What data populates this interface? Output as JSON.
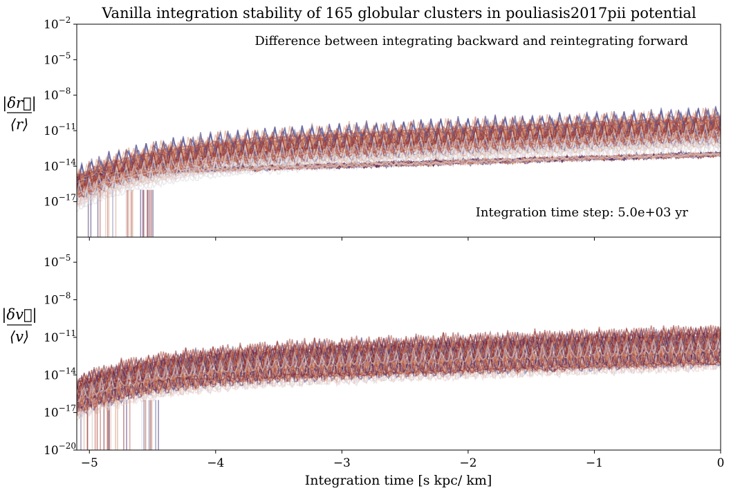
{
  "chart_data": {
    "type": "line",
    "title": "Vanilla integration stability of 165 globular clusters in pouliasis2017pii potential",
    "xlabel": "Integration time [s kpc/ km]",
    "xlim": [
      -5.1,
      0
    ],
    "x_ticks": [
      "−5",
      "−4",
      "−3",
      "−2",
      "−1",
      "0"
    ],
    "x_tick_values": [
      -5,
      -4,
      -3,
      -2,
      -1,
      0
    ],
    "n_series": 165,
    "colormap": "twilight_shifted (purple → red → light pink)",
    "colors": {
      "dark_purple": "#3b2466",
      "blue": "#4a5aa8",
      "dark_red": "#8a2a2a",
      "red": "#b04a3c",
      "salmon": "#d4906e",
      "light_pink": "#e6c6c0",
      "pale": "#ddd8df"
    },
    "panels": [
      {
        "ylabel_num": "|δr⃗|",
        "ylabel_den": "⟨r⟩",
        "scale": "log",
        "ylim": [
          1e-20,
          0.01
        ],
        "y_ticks": [
          {
            "base": "10",
            "exp": "−2",
            "value": 0.01
          },
          {
            "base": "10",
            "exp": "−5",
            "value": 1e-05
          },
          {
            "base": "10",
            "exp": "−8",
            "value": 1e-08
          },
          {
            "base": "10",
            "exp": "−11",
            "value": 1e-11
          },
          {
            "base": "10",
            "exp": "−14",
            "value": 1e-14
          },
          {
            "base": "10",
            "exp": "−17",
            "value": 1e-17
          }
        ],
        "annotation_top": "Difference between integrating backward and reintegrating forward",
        "annotation_bottom": "Integration time step: 5.0e+03 yr",
        "envelope": {
          "upper_start": 1e-15,
          "upper_end": 1e-10,
          "median_start": 1e-16,
          "median_end": 1e-11,
          "lower_end": 1e-14
        }
      },
      {
        "ylabel_num": "|δv⃗|",
        "ylabel_den": "⟨v⟩",
        "scale": "log",
        "ylim": [
          1e-20,
          0.001
        ],
        "y_ticks": [
          {
            "base": "10",
            "exp": "−5",
            "value": 1e-05
          },
          {
            "base": "10",
            "exp": "−8",
            "value": 1e-08
          },
          {
            "base": "10",
            "exp": "−11",
            "value": 1e-11
          },
          {
            "base": "10",
            "exp": "−14",
            "value": 1e-14
          },
          {
            "base": "10",
            "exp": "−17",
            "value": 1e-17
          },
          {
            "base": "10",
            "exp": "−20",
            "value": 1e-20
          }
        ],
        "envelope": {
          "upper_start": 1e-15,
          "upper_end": 1e-11,
          "median_start": 1e-16,
          "median_end": 1e-12,
          "lower_end": 1e-14
        }
      }
    ]
  }
}
